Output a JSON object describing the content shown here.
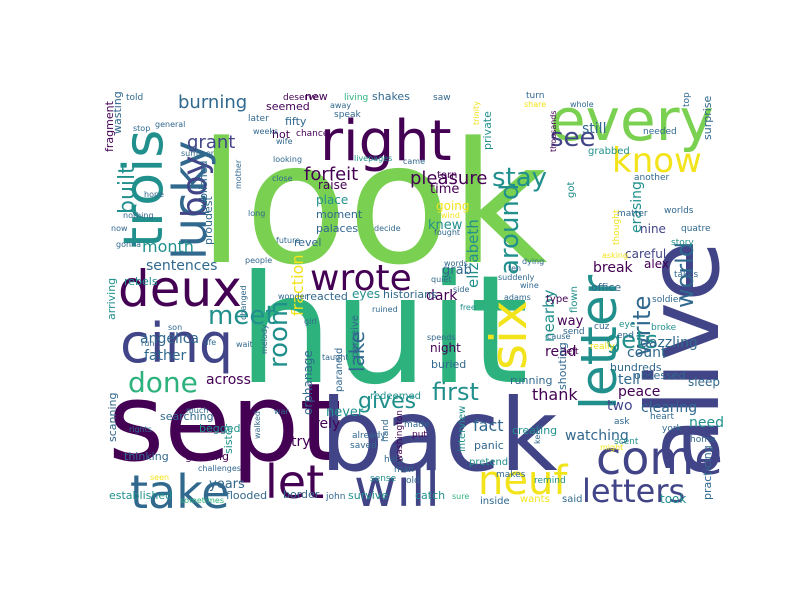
{
  "palette": {
    "background": "#ffffff",
    "yellow": "#f2e31b",
    "light_green": "#7ad151",
    "green": "#2db27d",
    "teal": "#21908d",
    "blue": "#31688e",
    "indigo": "#414487",
    "purple": "#440154"
  },
  "words": {
    "look": "look",
    "huit": "huit",
    "sept": "sept",
    "back": "back",
    "alive": "alive",
    "every": "every",
    "right": "right",
    "trois": "trois",
    "lucky": "lucky",
    "deux": "deux",
    "cinq": "cinq",
    "wrote": "wrote",
    "take": "take",
    "let": "let",
    "will": "will",
    "come": "come",
    "neuf": "neuf",
    "letters": "letters",
    "letter": "letter",
    "six": "six",
    "know": "know",
    "boy": "boy",
    "done": "done",
    "meet": "meet",
    "see": "see",
    "stay": "stay",
    "around": "around",
    "write": "write",
    "world": "world",
    "gets": "gets",
    "room": "room",
    "first": "first",
    "gives": "gives",
    "lake": "lake",
    "built": "built",
    "burning": "burning",
    "forfeit": "forfeit",
    "pleasure": "pleasure",
    "grant": "grant",
    "fraction": "fraction",
    "elizabeth": "elizabeth",
    "month": "month",
    "sentences": "sentences",
    "across": "across",
    "father": "father",
    "angelica": "angelica",
    "nearby": "nearby",
    "thank": "thank",
    "fact": "fact",
    "watching": "watching",
    "peace": "peace",
    "tell": "tell",
    "dazzling": "dazzling",
    "break": "break",
    "still": "still",
    "erasing": "erasing",
    "clearing": "clearing",
    "count": "count",
    "read": "read",
    "two": "two",
    "need": "need",
    "practicing": "practicing",
    "surprise": "surprise",
    "took": "took",
    "sleep": "sleep",
    "alex": "alex",
    "careful": "careful",
    "nine": "nine",
    "years": "years",
    "try": "try",
    "rely": "rely",
    "never": "never",
    "border": "border",
    "survive": "survive",
    "established": "established",
    "flooded": "flooded",
    "thinking": "thinking",
    "growing": "growing",
    "sister": "sister",
    "begged": "begged",
    "scanning": "scanning",
    "searching": "searching",
    "rebels": "rebels",
    "arriving": "arriving",
    "proudest": "proudest",
    "published": "published",
    "wasting": "wasting",
    "fragment": "fragment",
    "dark": "dark",
    "grab": "grab",
    "time": "time",
    "going": "going",
    "knew": "knew",
    "raise": "raise",
    "place": "place",
    "moment": "moment",
    "palaces": "palaces",
    "revel": "revel",
    "reacted": "reacted",
    "eyes": "eyes",
    "historians": "historians",
    "night": "night",
    "buried": "buried",
    "redeemed": "redeemed",
    "orphanage": "orphanage",
    "paranoid": "paranoid",
    "perceive": "perceive",
    "seemed": "seemed",
    "fifty": "fifty",
    "hot": "hot",
    "new": "new",
    "shakes": "shakes",
    "torn": "torn",
    "private": "private",
    "running": "running",
    "shouting": "shouting",
    "panic": "panic",
    "creating": "creating",
    "interview": "interview",
    "pretend": "pretend",
    "catch": "catch",
    "inside": "inside",
    "wants": "wants",
    "said": "said",
    "obsessed": "obsessed",
    "hundreds": "hundreds",
    "way": "way",
    "office": "office",
    "type": "type",
    "flown": "flown",
    "got": "got",
    "grabbed": "grabbed",
    "needed": "needed",
    "worlds": "worlds",
    "quatre": "quatre",
    "story": "story",
    "takes": "takes",
    "soldier": "soldier",
    "top": "top",
    "another": "another",
    "matter": "matter",
    "thought": "thought",
    "york": "york",
    "really": "really",
    "cuz": "cuz",
    "eye": "eye",
    "broke": "broke",
    "send": "send",
    "end": "end",
    "left": "left",
    "ask": "ask",
    "heart": "heart",
    "home": "home",
    "scent": "scent",
    "might": "might",
    "remind": "remind",
    "sure": "sure",
    "sometimes": "sometimes",
    "john": "john",
    "sense": "sense",
    "man": "man",
    "old": "old",
    "help": "help",
    "hand": "hand",
    "washington": "washington",
    "makes": "makes",
    "put": "put",
    "made": "made",
    "already": "already",
    "saved": "saved",
    "speak": "speak",
    "away": "away",
    "chance": "chance",
    "wife": "wife",
    "deserve": "deserve",
    "living": "living",
    "saw": "saw",
    "came": "came",
    "turn": "turn",
    "share": "share",
    "whole": "whole",
    "thousands": "thousands",
    "told": "told",
    "later": "later",
    "stop": "stop",
    "general": "general",
    "summer": "summer",
    "hope": "hope",
    "nothing": "nothing",
    "now": "now",
    "gonna": "gonna",
    "mother": "mother",
    "wind": "wind",
    "decide": "decide",
    "fought": "fought",
    "close": "close",
    "looking": "looking",
    "future": "future",
    "people": "people",
    "wonder": "wonder",
    "changed": "changed",
    "melody": "melody",
    "life": "life",
    "wait": "wait",
    "run": "run",
    "son": "son",
    "much": "much",
    "rights": "rights",
    "challenges": "challenges",
    "walked": "walked",
    "war": "war",
    "taught": "taught",
    "girl": "girl",
    "quiet": "quiet",
    "ruined": "ruined",
    "words": "words",
    "dying": "dying",
    "wine": "wine",
    "ten": "ten",
    "suddenly": "suddenly",
    "side": "side",
    "spends": "spends",
    "free": "free",
    "adams": "adams",
    "cause": "cause",
    "asking": "asking",
    "trinity": "trinity",
    "keep": "keep",
    "livepages": "livepages",
    "weeks": "weeks",
    "seen": "seen",
    "long": "long"
  }
}
